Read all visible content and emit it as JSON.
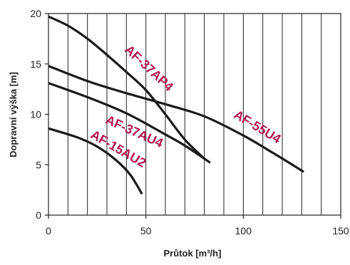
{
  "chart_data": {
    "type": "line",
    "title": "",
    "xlabel": "Průtok [m³/h]",
    "ylabel": "Dopravní výška [m]",
    "xlim": [
      0,
      150
    ],
    "ylim": [
      0,
      20
    ],
    "x_ticks": [
      0,
      50,
      100,
      150
    ],
    "y_ticks": [
      0,
      5,
      10,
      15,
      20
    ],
    "x_grid_step": 10,
    "grid": true,
    "grid_axis": "x",
    "colors": {
      "line": "#1a1a1a",
      "label": "#b0174d",
      "axis": "#222222"
    },
    "series": [
      {
        "name": "AF-37AP4",
        "x": [
          0,
          10,
          20,
          30,
          40,
          50,
          60,
          70,
          80
        ],
        "y": [
          19.7,
          18.8,
          17.5,
          15.9,
          14.2,
          12.4,
          10.0,
          7.5,
          5.6
        ]
      },
      {
        "name": "AF-55U4",
        "x": [
          0,
          20,
          40,
          60,
          80,
          100,
          115,
          131
        ],
        "y": [
          14.8,
          13.3,
          12.1,
          11.0,
          9.8,
          7.9,
          6.2,
          4.3
        ]
      },
      {
        "name": "AF-37AU4",
        "x": [
          0,
          20,
          40,
          60,
          70,
          83
        ],
        "y": [
          13.1,
          11.7,
          10.1,
          8.0,
          6.9,
          5.2
        ]
      },
      {
        "name": "AF-15AU2",
        "x": [
          0,
          15,
          25,
          35,
          42,
          48
        ],
        "y": [
          8.6,
          7.7,
          6.8,
          5.4,
          4.0,
          2.1
        ]
      }
    ]
  }
}
